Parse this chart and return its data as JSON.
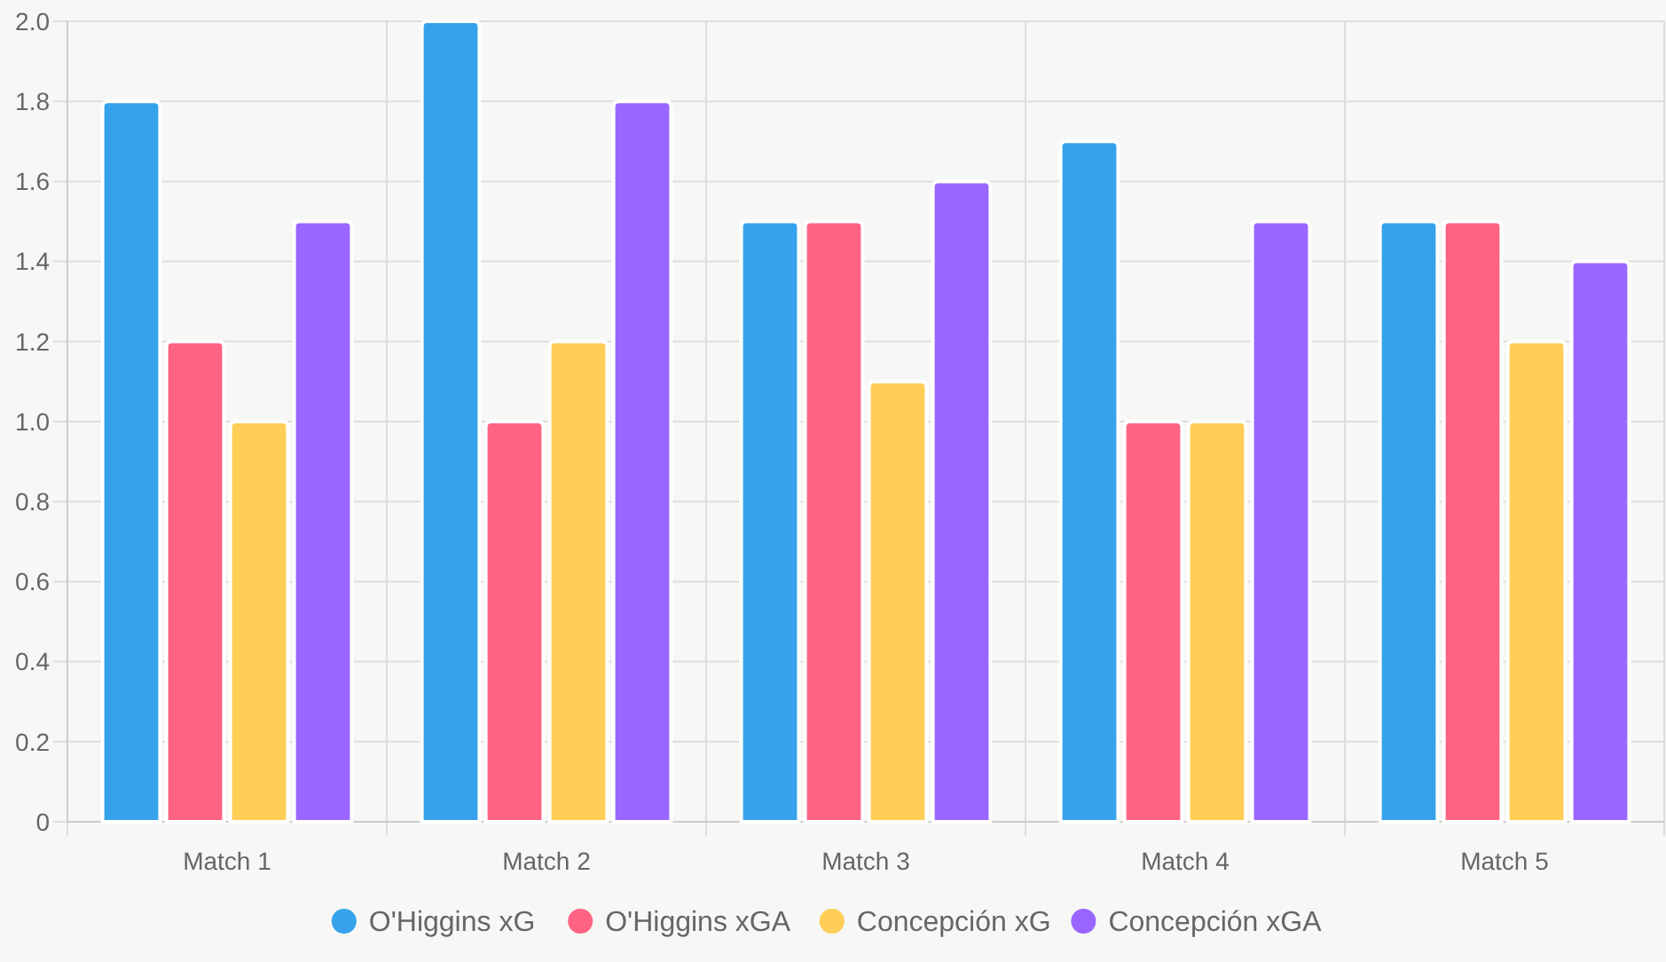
{
  "chart_data": {
    "type": "bar",
    "categories": [
      "Match 1",
      "Match 2",
      "Match 3",
      "Match 4",
      "Match 5"
    ],
    "series": [
      {
        "name": "O'Higgins xG",
        "color": "#36a2eb",
        "values": [
          1.8,
          2.0,
          1.5,
          1.7,
          1.5
        ]
      },
      {
        "name": "O'Higgins xGA",
        "color": "#ff6384",
        "values": [
          1.2,
          1.0,
          1.5,
          1.0,
          1.5
        ]
      },
      {
        "name": "Concepción xG",
        "color": "#ffce56",
        "values": [
          1.0,
          1.2,
          1.1,
          1.0,
          1.2
        ]
      },
      {
        "name": "Concepción xGA",
        "color": "#9966ff",
        "values": [
          1.5,
          1.8,
          1.6,
          1.5,
          1.4
        ]
      }
    ],
    "ylim": [
      0,
      2
    ],
    "yticks": [
      0,
      {
        "value": 0.2,
        "label": "0.2"
      },
      {
        "value": 0.4,
        "label": "0.4"
      },
      {
        "value": 0.6,
        "label": "0.6"
      },
      {
        "value": 0.8,
        "label": "0.8"
      },
      {
        "value": 1,
        "label": "1.0"
      },
      {
        "value": 1.2,
        "label": "1.2"
      },
      {
        "value": 1.4,
        "label": "1.4"
      },
      {
        "value": 1.6,
        "label": "1.6"
      },
      {
        "value": 1.8,
        "label": "1.8"
      },
      {
        "value": 2,
        "label": "2.0"
      }
    ],
    "grid": true,
    "legend": "bottom"
  }
}
